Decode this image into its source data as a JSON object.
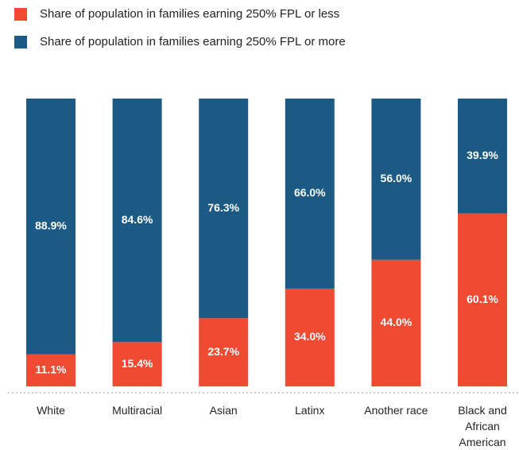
{
  "chart_data": {
    "type": "stacked_bar",
    "categories": [
      "White",
      "Multiracial",
      "Asian",
      "Latinx",
      "Another race",
      "Black and African American"
    ],
    "series": [
      {
        "name": "Share of population in families earning 250% FPL or less",
        "color": "#f04a32",
        "values": [
          11.1,
          15.4,
          23.7,
          34.0,
          44.0,
          60.1
        ],
        "value_labels": [
          "11.1%",
          "15.4%",
          "23.7%",
          "34.0%",
          "44.0%",
          "60.1%"
        ]
      },
      {
        "name": "Share of population in families earning 250% FPL or more",
        "color": "#1b5a85",
        "values": [
          88.9,
          84.6,
          76.3,
          66.0,
          56.0,
          39.9
        ],
        "value_labels": [
          "88.9%",
          "84.6%",
          "76.3%",
          "66.0%",
          "56.0%",
          "39.9%"
        ]
      }
    ],
    "ylim": [
      0,
      100
    ]
  }
}
